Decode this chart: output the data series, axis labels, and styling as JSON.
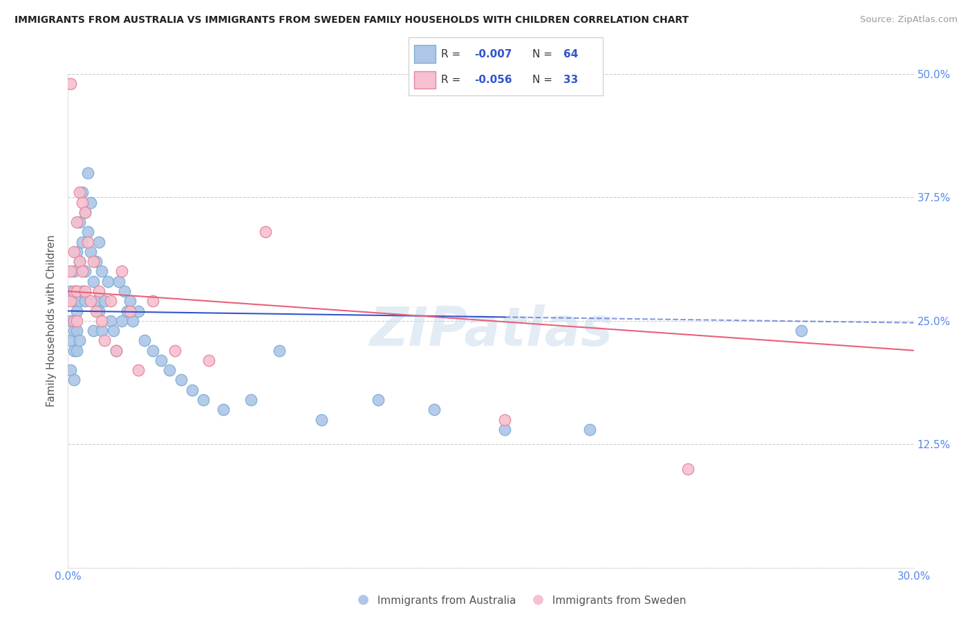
{
  "title": "IMMIGRANTS FROM AUSTRALIA VS IMMIGRANTS FROM SWEDEN FAMILY HOUSEHOLDS WITH CHILDREN CORRELATION CHART",
  "source": "Source: ZipAtlas.com",
  "ylabel": "Family Households with Children",
  "x_min": 0.0,
  "x_max": 0.3,
  "y_min": 0.0,
  "y_max": 0.5,
  "x_ticks": [
    0.0,
    0.05,
    0.1,
    0.15,
    0.2,
    0.25,
    0.3
  ],
  "y_ticks": [
    0.0,
    0.125,
    0.25,
    0.375,
    0.5
  ],
  "australia_color": "#aec6e8",
  "sweden_color": "#f5c0cf",
  "australia_edge": "#7bafd4",
  "sweden_edge": "#e8849c",
  "trend_australia_color": "#3355cc",
  "trend_sweden_color": "#e8607a",
  "watermark": "ZIPatlas",
  "aus_trend_y0": 0.26,
  "aus_trend_y1": 0.248,
  "swe_trend_y0": 0.28,
  "swe_trend_y1": 0.22,
  "aus_trend_solid_end": 0.155,
  "australia_x": [
    0.001,
    0.001,
    0.001,
    0.001,
    0.002,
    0.002,
    0.002,
    0.002,
    0.002,
    0.003,
    0.003,
    0.003,
    0.003,
    0.003,
    0.004,
    0.004,
    0.004,
    0.004,
    0.005,
    0.005,
    0.005,
    0.006,
    0.006,
    0.006,
    0.007,
    0.007,
    0.008,
    0.008,
    0.009,
    0.009,
    0.01,
    0.01,
    0.011,
    0.011,
    0.012,
    0.012,
    0.013,
    0.014,
    0.015,
    0.016,
    0.017,
    0.018,
    0.019,
    0.02,
    0.021,
    0.022,
    0.023,
    0.025,
    0.027,
    0.03,
    0.033,
    0.036,
    0.04,
    0.044,
    0.048,
    0.055,
    0.065,
    0.075,
    0.09,
    0.11,
    0.13,
    0.155,
    0.185,
    0.26
  ],
  "australia_y": [
    0.28,
    0.25,
    0.23,
    0.2,
    0.3,
    0.27,
    0.24,
    0.22,
    0.19,
    0.32,
    0.28,
    0.26,
    0.24,
    0.22,
    0.35,
    0.31,
    0.27,
    0.23,
    0.38,
    0.33,
    0.28,
    0.36,
    0.3,
    0.27,
    0.4,
    0.34,
    0.37,
    0.32,
    0.29,
    0.24,
    0.31,
    0.27,
    0.33,
    0.26,
    0.3,
    0.24,
    0.27,
    0.29,
    0.25,
    0.24,
    0.22,
    0.29,
    0.25,
    0.28,
    0.26,
    0.27,
    0.25,
    0.26,
    0.23,
    0.22,
    0.21,
    0.2,
    0.19,
    0.18,
    0.17,
    0.16,
    0.17,
    0.22,
    0.15,
    0.17,
    0.16,
    0.14,
    0.14,
    0.24
  ],
  "sweden_x": [
    0.001,
    0.001,
    0.001,
    0.002,
    0.002,
    0.002,
    0.003,
    0.003,
    0.003,
    0.004,
    0.004,
    0.005,
    0.005,
    0.006,
    0.006,
    0.007,
    0.008,
    0.009,
    0.01,
    0.011,
    0.012,
    0.013,
    0.015,
    0.017,
    0.019,
    0.022,
    0.025,
    0.03,
    0.038,
    0.05,
    0.07,
    0.155,
    0.22
  ],
  "sweden_y": [
    0.49,
    0.3,
    0.27,
    0.32,
    0.28,
    0.25,
    0.35,
    0.28,
    0.25,
    0.38,
    0.31,
    0.37,
    0.3,
    0.36,
    0.28,
    0.33,
    0.27,
    0.31,
    0.26,
    0.28,
    0.25,
    0.23,
    0.27,
    0.22,
    0.3,
    0.26,
    0.2,
    0.27,
    0.22,
    0.21,
    0.34,
    0.15,
    0.1
  ]
}
